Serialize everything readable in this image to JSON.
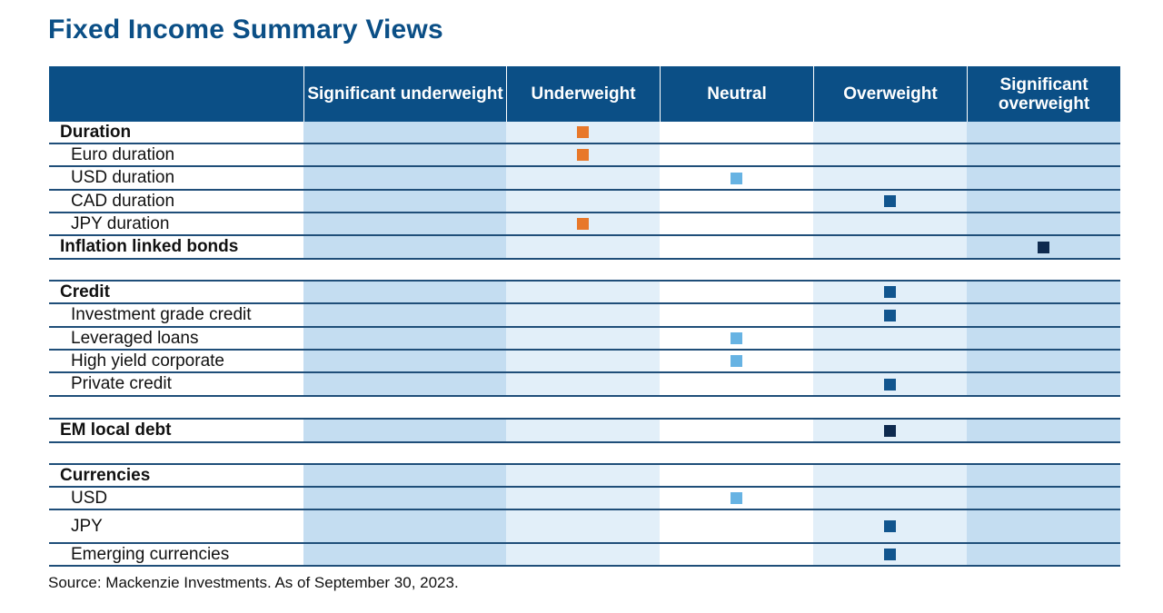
{
  "title": "Fixed Income Summary Views",
  "columns": [
    "Significant underweight",
    "Underweight",
    "Neutral",
    "Overweight",
    "Significant overweight"
  ],
  "rows": [
    {
      "label": "Duration",
      "bold": true,
      "view": 1,
      "color": "#e8782a"
    },
    {
      "label": "Euro duration",
      "bold": false,
      "view": 1,
      "color": "#e8782a"
    },
    {
      "label": "USD duration",
      "bold": false,
      "view": 2,
      "color": "#67b3e3"
    },
    {
      "label": "CAD duration",
      "bold": false,
      "view": 3,
      "color": "#11558e"
    },
    {
      "label": "JPY duration",
      "bold": false,
      "view": 1,
      "color": "#e8782a"
    },
    {
      "label": "Inflation linked bonds",
      "bold": true,
      "view": 4,
      "color": "#0e2a4f"
    },
    {
      "spacer": true
    },
    {
      "label": "Credit",
      "bold": true,
      "view": 3,
      "color": "#11558e"
    },
    {
      "label": "Investment grade credit",
      "bold": false,
      "view": 3,
      "color": "#11558e"
    },
    {
      "label": "Leveraged loans",
      "bold": false,
      "view": 2,
      "color": "#67b3e3"
    },
    {
      "label": "High yield corporate",
      "bold": false,
      "view": 2,
      "color": "#67b3e3"
    },
    {
      "label": "Private credit",
      "bold": false,
      "view": 3,
      "color": "#11558e"
    },
    {
      "spacer": true
    },
    {
      "label": "EM local debt",
      "bold": true,
      "view": 3,
      "color": "#0e2a4f"
    },
    {
      "spacer": true
    },
    {
      "label": "Currencies",
      "bold": true,
      "view": null
    },
    {
      "label": "USD",
      "bold": false,
      "view": 2,
      "color": "#67b3e3"
    },
    {
      "label": "JPY",
      "bold": false,
      "view": 3,
      "color": "#11558e"
    },
    {
      "label": "Emerging currencies",
      "bold": false,
      "view": 3,
      "color": "#11558e"
    }
  ],
  "source": "Source: Mackenzie Investments. As of September 30, 2023."
}
